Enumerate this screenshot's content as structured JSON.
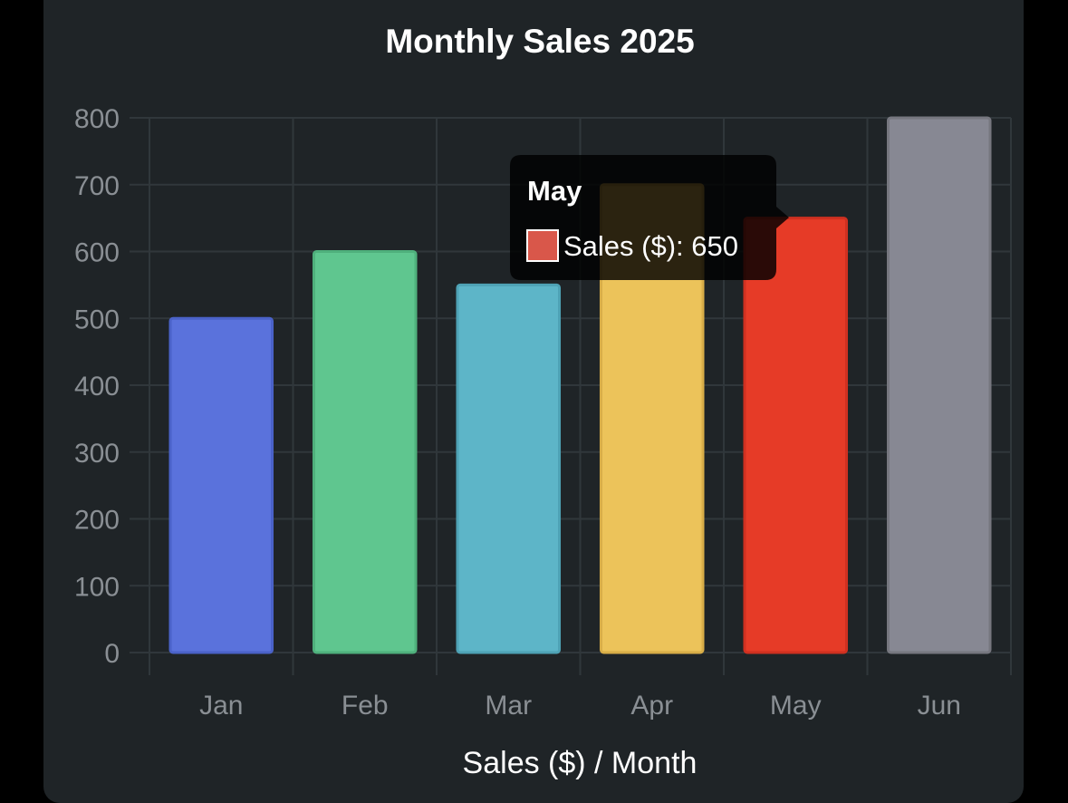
{
  "chart_data": {
    "type": "bar",
    "title": "Monthly Sales 2025",
    "xlabel": "Sales ($) / Month",
    "ylabel": "",
    "categories": [
      "Jan",
      "Feb",
      "Mar",
      "Apr",
      "May",
      "Jun"
    ],
    "series": [
      {
        "name": "Sales ($)",
        "values": [
          500,
          600,
          550,
          700,
          650,
          800
        ]
      }
    ],
    "bar_colors": [
      "#5a72dc",
      "#5fc68f",
      "#5db5c8",
      "#ecc35a",
      "#e63b27",
      "#878893"
    ],
    "bar_border_colors": [
      "#4a62c8",
      "#4fb07c",
      "#4ea2b5",
      "#d8ad48",
      "#cf3020",
      "#76777f"
    ],
    "ylim": [
      0,
      800
    ],
    "yticks": [
      0,
      100,
      200,
      300,
      400,
      500,
      600,
      700,
      800
    ],
    "grid": true,
    "legend": "none",
    "tooltip": {
      "title": "May",
      "label": "Sales ($): 650",
      "swatch_color": "#d9574a",
      "category_index": 4
    }
  }
}
